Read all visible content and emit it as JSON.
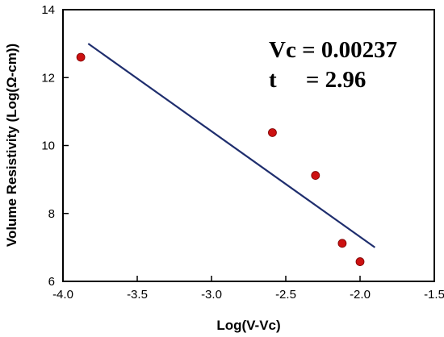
{
  "chart_data": {
    "type": "scatter",
    "xlabel": "Log(V-Vc)",
    "ylabel": "Volume Resistivity (Log(Ω-cm))",
    "xlim": [
      -4.0,
      -1.5
    ],
    "ylim": [
      6,
      14
    ],
    "xticks": [
      "-4.0",
      "-3.5",
      "-3.0",
      "-2.5",
      "-2.0",
      "-1.5"
    ],
    "yticks": [
      "6",
      "8",
      "10",
      "12",
      "14"
    ],
    "grid": false,
    "legend": "none",
    "series": [
      {
        "kind": "points",
        "color": "#cc1111",
        "points": [
          {
            "x": -3.88,
            "y": 12.6
          },
          {
            "x": -2.59,
            "y": 10.38
          },
          {
            "x": -2.3,
            "y": 9.12
          },
          {
            "x": -2.12,
            "y": 7.12
          },
          {
            "x": -2.0,
            "y": 6.58
          }
        ]
      },
      {
        "kind": "fit-line",
        "color": "#1f2e6e",
        "points": [
          {
            "x": -3.83,
            "y": 13.0
          },
          {
            "x": -1.9,
            "y": 7.0
          }
        ]
      }
    ],
    "annotations": [
      {
        "text": "Vc = 0.00237"
      },
      {
        "text": "t     = 2.96"
      }
    ]
  }
}
